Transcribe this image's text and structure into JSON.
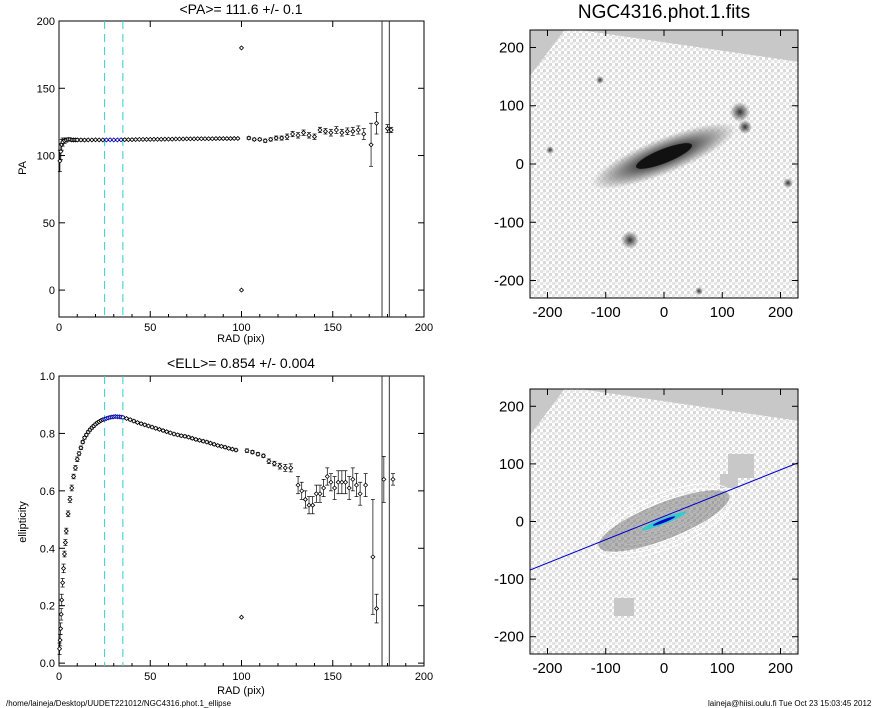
{
  "footer": {
    "path": "/home/laineja/Desktop/UUDET221012/NGC4316.phot.1_ellipse",
    "stamp": "laineja@hiisi.oulu.fi  Tue Oct 23 15:03:45 2012"
  },
  "chart_data": [
    {
      "type": "scatter",
      "title": "<PA>= 111.6 +/-   0.1",
      "xlabel": "RAD (pix)",
      "ylabel": "PA",
      "xlim": [
        0,
        200
      ],
      "ylim": [
        -20,
        200
      ],
      "xticks": [
        "0",
        "50",
        "100",
        "150",
        "200"
      ],
      "yticks": [
        "0",
        "50",
        "100",
        "150",
        "200"
      ],
      "dashed_x": [
        25,
        35
      ],
      "vlines_x": [
        177,
        181
      ],
      "highlight_range": [
        25,
        35
      ],
      "points": [
        [
          0.5,
          96,
          8
        ],
        [
          1,
          103,
          6
        ],
        [
          1.5,
          108,
          4
        ],
        [
          2,
          110,
          3
        ],
        [
          3,
          111,
          2
        ],
        [
          4,
          111.5,
          1.5
        ],
        [
          5,
          112,
          1
        ],
        [
          6,
          112,
          1
        ],
        [
          7,
          111.6,
          1
        ],
        [
          8,
          111.6,
          1
        ],
        [
          9,
          111.6,
          1
        ],
        [
          10,
          111.6,
          1
        ],
        [
          12,
          111.6,
          0.8
        ],
        [
          14,
          111.5,
          0.8
        ],
        [
          16,
          111.6,
          0.5
        ],
        [
          18,
          111.6,
          0.5
        ],
        [
          20,
          111.7,
          0.5
        ],
        [
          22,
          111.6,
          0.5
        ],
        [
          24,
          111.6,
          0.5
        ],
        [
          26,
          111.6,
          0.5
        ],
        [
          28,
          111.7,
          0.5
        ],
        [
          30,
          111.6,
          0.5
        ],
        [
          32,
          111.6,
          0.5
        ],
        [
          34,
          111.7,
          0.5
        ],
        [
          36,
          111.8,
          0.5
        ],
        [
          38,
          111.8,
          0.5
        ],
        [
          40,
          111.8,
          0.5
        ],
        [
          42,
          111.9,
          0.5
        ],
        [
          44,
          112,
          0.5
        ],
        [
          46,
          112,
          0.5
        ],
        [
          48,
          112,
          0.5
        ],
        [
          50,
          112,
          0.5
        ],
        [
          52,
          112.1,
          0.5
        ],
        [
          54,
          112.1,
          0.5
        ],
        [
          56,
          112.1,
          0.5
        ],
        [
          58,
          112.2,
          0.5
        ],
        [
          60,
          112.2,
          0.5
        ],
        [
          62,
          112.2,
          0.5
        ],
        [
          64,
          112.3,
          0.5
        ],
        [
          66,
          112.3,
          0.5
        ],
        [
          68,
          112.3,
          0.5
        ],
        [
          70,
          112.4,
          0.5
        ],
        [
          72,
          112.4,
          0.5
        ],
        [
          74,
          112.4,
          0.5
        ],
        [
          76,
          112.5,
          0.5
        ],
        [
          78,
          112.5,
          0.5
        ],
        [
          80,
          112.5,
          0.5
        ],
        [
          82,
          112.5,
          0.5
        ],
        [
          84,
          112.5,
          0.5
        ],
        [
          86,
          112.6,
          0.5
        ],
        [
          88,
          112.6,
          0.5
        ],
        [
          90,
          112.6,
          0.5
        ],
        [
          92,
          112.6,
          0.5
        ],
        [
          94,
          112.6,
          0.5
        ],
        [
          96,
          112.7,
          0.5
        ],
        [
          98,
          112.7,
          0.5
        ],
        [
          100,
          180,
          0
        ],
        [
          100,
          0,
          0
        ],
        [
          104,
          113,
          1
        ],
        [
          107,
          112,
          1
        ],
        [
          110,
          112,
          1
        ],
        [
          113,
          111,
          1.2
        ],
        [
          116,
          112,
          1.2
        ],
        [
          119,
          113,
          1.5
        ],
        [
          122,
          113,
          1.5
        ],
        [
          125,
          114,
          2
        ],
        [
          128,
          116,
          2
        ],
        [
          131,
          115,
          2
        ],
        [
          134,
          117,
          2
        ],
        [
          137,
          115,
          2
        ],
        [
          140,
          114,
          2
        ],
        [
          143,
          119,
          2
        ],
        [
          146,
          118,
          2
        ],
        [
          149,
          117,
          2.5
        ],
        [
          152,
          119,
          2.5
        ],
        [
          155,
          117,
          2.5
        ],
        [
          158,
          118,
          2.5
        ],
        [
          161,
          118,
          3
        ],
        [
          164,
          119,
          3
        ],
        [
          167,
          116,
          4
        ],
        [
          171,
          108,
          16
        ],
        [
          174,
          124,
          8
        ],
        [
          180,
          120,
          3
        ],
        [
          182,
          119,
          2
        ]
      ]
    },
    {
      "type": "scatter",
      "title": "<ELL>= 0.854 +/-  0.004",
      "xlabel": "RAD (pix)",
      "ylabel": "ellipticity",
      "xlim": [
        0,
        200
      ],
      "ylim": [
        -0.01,
        1.0
      ],
      "xticks": [
        "0",
        "50",
        "100",
        "150",
        "200"
      ],
      "yticks": [
        "0.0",
        "0.2",
        "0.4",
        "0.6",
        "0.8",
        "1.0"
      ],
      "dashed_x": [
        25,
        35
      ],
      "vlines_x": [
        177,
        181
      ],
      "highlight_range": [
        25,
        35
      ],
      "points": [
        [
          0.3,
          0.05,
          0.02
        ],
        [
          0.6,
          0.08,
          0.02
        ],
        [
          0.9,
          0.12,
          0.02
        ],
        [
          1.2,
          0.17,
          0.02
        ],
        [
          1.5,
          0.22,
          0.02
        ],
        [
          2,
          0.28,
          0.015
        ],
        [
          2.5,
          0.33,
          0.015
        ],
        [
          3,
          0.38,
          0.01
        ],
        [
          3.5,
          0.42,
          0.01
        ],
        [
          4,
          0.46,
          0.01
        ],
        [
          5,
          0.52,
          0.01
        ],
        [
          6,
          0.57,
          0.01
        ],
        [
          7,
          0.61,
          0.01
        ],
        [
          8,
          0.65,
          0.008
        ],
        [
          9,
          0.68,
          0.008
        ],
        [
          10,
          0.71,
          0.008
        ],
        [
          11,
          0.73,
          0.006
        ],
        [
          12,
          0.75,
          0.006
        ],
        [
          13,
          0.77,
          0.006
        ],
        [
          14,
          0.785,
          0.005
        ],
        [
          15,
          0.795,
          0.005
        ],
        [
          16,
          0.805,
          0.005
        ],
        [
          17,
          0.813,
          0.005
        ],
        [
          18,
          0.82,
          0.005
        ],
        [
          19,
          0.826,
          0.005
        ],
        [
          20,
          0.832,
          0.004
        ],
        [
          21,
          0.837,
          0.004
        ],
        [
          22,
          0.841,
          0.004
        ],
        [
          23,
          0.845,
          0.004
        ],
        [
          24,
          0.848,
          0.004
        ],
        [
          25,
          0.85,
          0.004
        ],
        [
          26,
          0.852,
          0.004
        ],
        [
          27,
          0.854,
          0.004
        ],
        [
          28,
          0.856,
          0.004
        ],
        [
          29,
          0.857,
          0.004
        ],
        [
          30,
          0.858,
          0.004
        ],
        [
          31,
          0.859,
          0.004
        ],
        [
          32,
          0.858,
          0.004
        ],
        [
          33,
          0.858,
          0.004
        ],
        [
          34,
          0.857,
          0.004
        ],
        [
          35,
          0.856,
          0.004
        ],
        [
          37,
          0.852,
          0.004
        ],
        [
          39,
          0.848,
          0.004
        ],
        [
          41,
          0.843,
          0.004
        ],
        [
          43,
          0.838,
          0.004
        ],
        [
          45,
          0.834,
          0.004
        ],
        [
          47,
          0.83,
          0.004
        ],
        [
          49,
          0.826,
          0.004
        ],
        [
          51,
          0.822,
          0.004
        ],
        [
          53,
          0.818,
          0.004
        ],
        [
          55,
          0.814,
          0.004
        ],
        [
          57,
          0.81,
          0.004
        ],
        [
          59,
          0.806,
          0.004
        ],
        [
          61,
          0.802,
          0.004
        ],
        [
          63,
          0.798,
          0.004
        ],
        [
          65,
          0.795,
          0.004
        ],
        [
          67,
          0.792,
          0.004
        ],
        [
          69,
          0.79,
          0.004
        ],
        [
          71,
          0.787,
          0.004
        ],
        [
          73,
          0.783,
          0.004
        ],
        [
          75,
          0.779,
          0.004
        ],
        [
          77,
          0.776,
          0.004
        ],
        [
          79,
          0.773,
          0.004
        ],
        [
          81,
          0.77,
          0.004
        ],
        [
          83,
          0.766,
          0.004
        ],
        [
          85,
          0.762,
          0.004
        ],
        [
          87,
          0.758,
          0.004
        ],
        [
          89,
          0.755,
          0.004
        ],
        [
          91,
          0.752,
          0.004
        ],
        [
          93,
          0.748,
          0.004
        ],
        [
          95,
          0.745,
          0.004
        ],
        [
          97,
          0.742,
          0.004
        ],
        [
          100,
          0.16,
          0
        ],
        [
          103,
          0.74,
          0.006
        ],
        [
          106,
          0.735,
          0.006
        ],
        [
          109,
          0.728,
          0.006
        ],
        [
          112,
          0.722,
          0.006
        ],
        [
          115,
          0.703,
          0.008
        ],
        [
          118,
          0.695,
          0.008
        ],
        [
          121,
          0.686,
          0.01
        ],
        [
          124,
          0.68,
          0.012
        ],
        [
          127,
          0.68,
          0.014
        ],
        [
          131,
          0.62,
          0.03
        ],
        [
          133,
          0.6,
          0.03
        ],
        [
          135,
          0.57,
          0.03
        ],
        [
          137,
          0.55,
          0.03
        ],
        [
          139,
          0.55,
          0.03
        ],
        [
          141,
          0.59,
          0.03
        ],
        [
          143,
          0.59,
          0.03
        ],
        [
          145,
          0.61,
          0.03
        ],
        [
          147,
          0.65,
          0.03
        ],
        [
          149,
          0.63,
          0.03
        ],
        [
          151,
          0.61,
          0.04
        ],
        [
          153,
          0.63,
          0.04
        ],
        [
          155,
          0.63,
          0.04
        ],
        [
          157,
          0.63,
          0.04
        ],
        [
          159,
          0.61,
          0.04
        ],
        [
          161,
          0.64,
          0.04
        ],
        [
          163,
          0.62,
          0.04
        ],
        [
          165,
          0.59,
          0.04
        ],
        [
          168,
          0.62,
          0.04
        ],
        [
          172,
          0.37,
          0.2
        ],
        [
          174,
          0.19,
          0.05
        ],
        [
          178,
          0.64,
          0.08
        ],
        [
          183,
          0.64,
          0.02
        ]
      ]
    },
    {
      "type": "heatmap",
      "title": "NGC4316.phot.1.fits",
      "xticks": [
        "-200",
        "-100",
        "0",
        "100",
        "200"
      ],
      "yticks": [
        "200",
        "100",
        "0",
        "-100",
        "-200"
      ],
      "xlim": [
        -230,
        230
      ],
      "ylim": [
        -230,
        230
      ]
    },
    {
      "type": "heatmap",
      "title": "",
      "xticks": [
        "-200",
        "-100",
        "0",
        "100",
        "200"
      ],
      "yticks": [
        "200",
        "100",
        "0",
        "-100",
        "-200"
      ],
      "xlim": [
        -230,
        230
      ],
      "ylim": [
        -230,
        230
      ],
      "major_axis_pa": 111.6,
      "contour_ellipticity": 0.854
    }
  ]
}
